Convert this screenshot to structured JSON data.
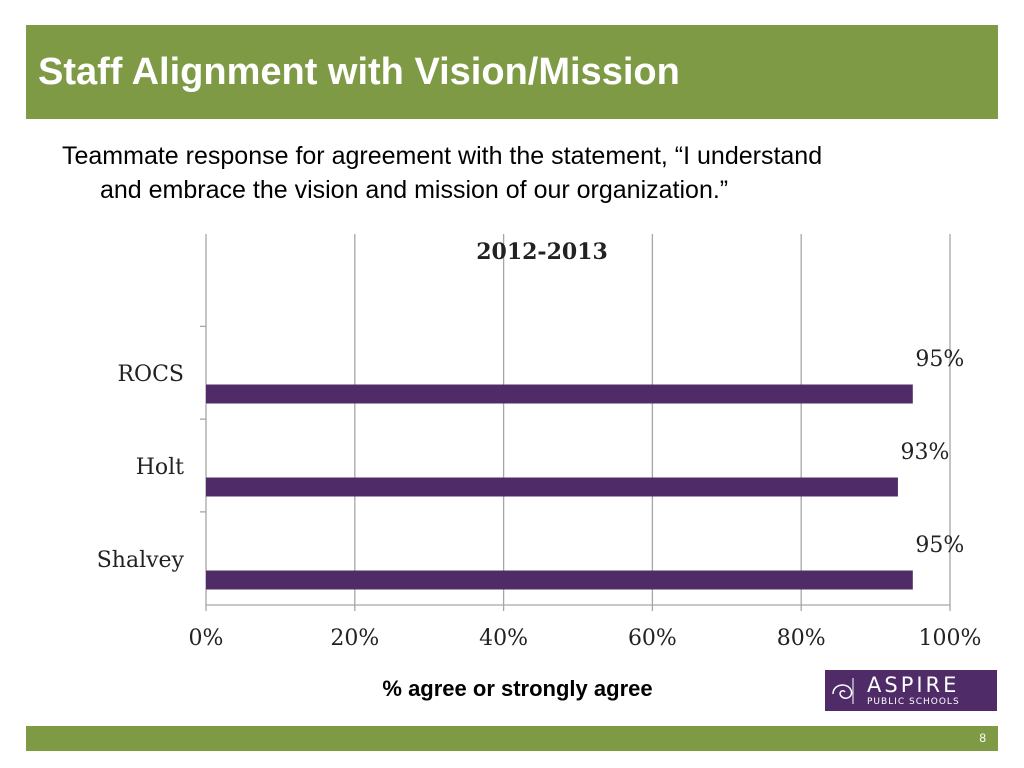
{
  "header": {
    "title": "Staff Alignment with Vision/Mission"
  },
  "subtitle": {
    "line1": "Teammate response for agreement with the statement, “I understand",
    "line2": "and embrace the vision and mission of our organization.”"
  },
  "chart_data": {
    "type": "bar",
    "orientation": "horizontal",
    "title": "2012-2013",
    "categories": [
      "ROCS",
      "Holt",
      "Shalvey"
    ],
    "values": [
      95,
      93,
      95
    ],
    "data_labels": [
      "95%",
      "93%",
      "95%"
    ],
    "xlabel": "% agree or strongly agree",
    "xlim": [
      0,
      100
    ],
    "xticks": [
      "0%",
      "20%",
      "40%",
      "60%",
      "80%",
      "100%"
    ],
    "bar_color": "#4f2c68",
    "grid": true
  },
  "logo": {
    "name": "ASPIRE",
    "sub": "PUBLIC SCHOOLS"
  },
  "footer": {
    "page_number": "8"
  },
  "colors": {
    "accent": "#7f9a44",
    "brand": "#4f2c68"
  }
}
